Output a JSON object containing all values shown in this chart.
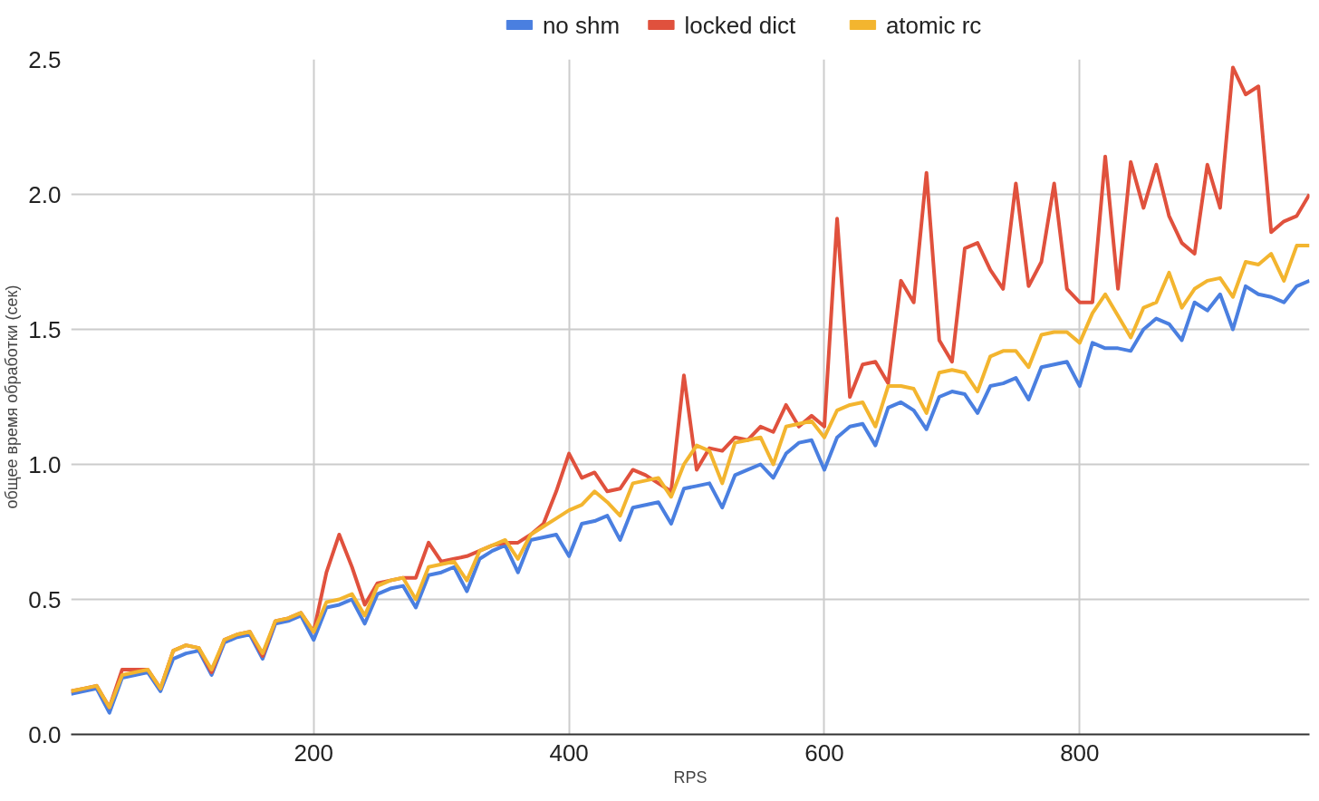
{
  "chart_data": {
    "type": "line",
    "xlabel": "RPS",
    "ylabel": "общее время обработки (сек)",
    "x": [
      10,
      20,
      30,
      40,
      50,
      60,
      70,
      80,
      90,
      100,
      110,
      120,
      130,
      140,
      150,
      160,
      170,
      180,
      190,
      200,
      210,
      220,
      230,
      240,
      250,
      260,
      270,
      280,
      290,
      300,
      310,
      320,
      330,
      340,
      350,
      360,
      370,
      380,
      390,
      400,
      410,
      420,
      430,
      440,
      450,
      460,
      470,
      480,
      490,
      500,
      510,
      520,
      530,
      540,
      550,
      560,
      570,
      580,
      590,
      600,
      610,
      620,
      630,
      640,
      650,
      660,
      670,
      680,
      690,
      700,
      710,
      720,
      730,
      740,
      750,
      760,
      770,
      780,
      790,
      800,
      810,
      820,
      830,
      840,
      850,
      860,
      870,
      880,
      890,
      900,
      910,
      920,
      930,
      940,
      950,
      960,
      970,
      980
    ],
    "series": [
      {
        "name": "no shm",
        "color": "#4a7fe0",
        "values": [
          0.15,
          0.16,
          0.17,
          0.08,
          0.21,
          0.22,
          0.23,
          0.16,
          0.28,
          0.3,
          0.31,
          0.22,
          0.34,
          0.36,
          0.37,
          0.28,
          0.41,
          0.42,
          0.44,
          0.35,
          0.47,
          0.48,
          0.5,
          0.41,
          0.52,
          0.54,
          0.55,
          0.47,
          0.59,
          0.6,
          0.62,
          0.53,
          0.65,
          0.68,
          0.7,
          0.6,
          0.72,
          0.73,
          0.74,
          0.66,
          0.78,
          0.79,
          0.81,
          0.72,
          0.84,
          0.85,
          0.86,
          0.78,
          0.91,
          0.92,
          0.93,
          0.84,
          0.96,
          0.98,
          1.0,
          0.95,
          1.04,
          1.08,
          1.09,
          0.98,
          1.1,
          1.14,
          1.15,
          1.07,
          1.21,
          1.23,
          1.2,
          1.13,
          1.25,
          1.27,
          1.26,
          1.19,
          1.29,
          1.3,
          1.32,
          1.24,
          1.36,
          1.37,
          1.38,
          1.29,
          1.45,
          1.43,
          1.43,
          1.42,
          1.5,
          1.54,
          1.52,
          1.46,
          1.6,
          1.57,
          1.63,
          1.5,
          1.66,
          1.63,
          1.62,
          1.6,
          1.66,
          1.68
        ]
      },
      {
        "name": "locked dict",
        "color": "#e0513d",
        "values": [
          0.16,
          0.17,
          0.18,
          0.1,
          0.24,
          0.24,
          0.24,
          0.17,
          0.31,
          0.33,
          0.32,
          0.23,
          0.35,
          0.37,
          0.38,
          0.29,
          0.42,
          0.43,
          0.45,
          0.38,
          0.6,
          0.74,
          0.62,
          0.48,
          0.56,
          0.57,
          0.58,
          0.58,
          0.71,
          0.64,
          0.65,
          0.66,
          0.68,
          0.7,
          0.71,
          0.71,
          0.74,
          0.78,
          0.9,
          1.04,
          0.95,
          0.97,
          0.9,
          0.91,
          0.98,
          0.96,
          0.93,
          0.9,
          1.33,
          0.98,
          1.06,
          1.05,
          1.1,
          1.09,
          1.14,
          1.12,
          1.22,
          1.14,
          1.18,
          1.14,
          1.91,
          1.25,
          1.37,
          1.38,
          1.3,
          1.68,
          1.6,
          2.08,
          1.46,
          1.38,
          1.8,
          1.82,
          1.72,
          1.65,
          2.04,
          1.66,
          1.75,
          2.04,
          1.65,
          1.6,
          1.6,
          2.14,
          1.65,
          2.12,
          1.95,
          2.11,
          1.92,
          1.82,
          1.78,
          2.11,
          1.95,
          2.47,
          2.37,
          2.4,
          1.86,
          1.9,
          1.92,
          2.0
        ]
      },
      {
        "name": "atomic rc",
        "color": "#f3b52f",
        "values": [
          0.16,
          0.17,
          0.18,
          0.1,
          0.22,
          0.23,
          0.24,
          0.17,
          0.31,
          0.33,
          0.32,
          0.24,
          0.35,
          0.37,
          0.38,
          0.3,
          0.42,
          0.43,
          0.45,
          0.38,
          0.49,
          0.5,
          0.52,
          0.44,
          0.55,
          0.57,
          0.58,
          0.5,
          0.62,
          0.63,
          0.64,
          0.57,
          0.68,
          0.7,
          0.72,
          0.65,
          0.74,
          0.77,
          0.8,
          0.83,
          0.85,
          0.9,
          0.86,
          0.81,
          0.93,
          0.94,
          0.95,
          0.88,
          1.0,
          1.07,
          1.05,
          0.93,
          1.08,
          1.09,
          1.1,
          1.0,
          1.14,
          1.15,
          1.16,
          1.1,
          1.2,
          1.22,
          1.23,
          1.14,
          1.29,
          1.29,
          1.28,
          1.19,
          1.34,
          1.35,
          1.34,
          1.27,
          1.4,
          1.42,
          1.42,
          1.36,
          1.48,
          1.49,
          1.49,
          1.45,
          1.56,
          1.63,
          1.55,
          1.47,
          1.58,
          1.6,
          1.71,
          1.58,
          1.65,
          1.68,
          1.69,
          1.62,
          1.75,
          1.74,
          1.78,
          1.68,
          1.81,
          1.81
        ]
      }
    ],
    "xlim": [
      10,
      980
    ],
    "xticks": [
      200,
      400,
      600,
      800
    ],
    "ylim": [
      0,
      2.5
    ],
    "yticks": [
      {
        "value": 0,
        "label": "0.0"
      },
      {
        "value": 0.5,
        "label": "0.5"
      },
      {
        "value": 1,
        "label": "1.0"
      },
      {
        "value": 1.5,
        "label": "1.5"
      },
      {
        "value": 2,
        "label": "2.0"
      },
      {
        "value": 2.5,
        "label": "2.5"
      }
    ],
    "grid": true,
    "legend": "top",
    "marker": "none",
    "line_style": "solid"
  }
}
